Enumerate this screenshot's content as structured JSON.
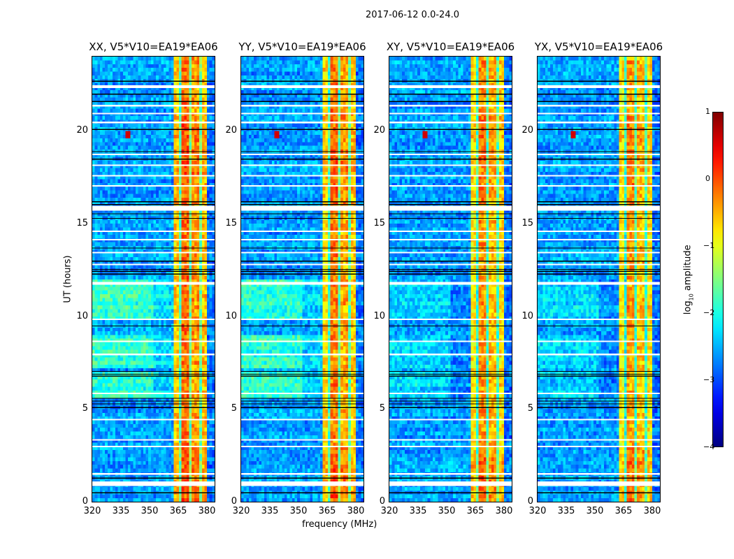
{
  "chart_data": {
    "type": "heatmap",
    "title": "2017-06-12 0.0-24.0",
    "xlabel": "frequency (MHz)",
    "ylabel": "UT (hours)",
    "xlim": [
      320,
      384
    ],
    "ylim": [
      0,
      24
    ],
    "xticks": [
      "320",
      "335",
      "350",
      "365",
      "380"
    ],
    "yticks": [
      "0",
      "5",
      "10",
      "15",
      "20"
    ],
    "colormap": "jet",
    "colorbar": {
      "label_base": "log",
      "label_sub": "10",
      "label_rest": " amplitude",
      "range": [
        -4,
        1
      ],
      "ticks": [
        "1",
        "0",
        "−1",
        "−2",
        "−3",
        "−4"
      ]
    },
    "model": {
      "background_level": -2.6,
      "noise": 0.35,
      "bands": [
        {
          "from": 320,
          "to": 363,
          "level": -2.6
        },
        {
          "from": 363,
          "to": 366,
          "level": -0.8
        },
        {
          "from": 366,
          "to": 367.3,
          "level": -2.0
        },
        {
          "from": 367.3,
          "to": 371,
          "level": -0.35
        },
        {
          "from": 371,
          "to": 372.5,
          "level": -1.8
        },
        {
          "from": 372.5,
          "to": 376,
          "level": -0.55
        },
        {
          "from": 376,
          "to": 377,
          "level": -1.8
        },
        {
          "from": 377,
          "to": 380,
          "level": -0.75
        },
        {
          "from": 380,
          "to": 384,
          "level": -2.8
        }
      ],
      "bright_background_hours": [
        [
          5.7,
          7.0
        ],
        [
          7.3,
          9.0
        ],
        [
          9.8,
          12.0
        ]
      ],
      "flagged_hours": [
        [
          0.85,
          1.1
        ],
        [
          1.45,
          1.55
        ],
        [
          2.95,
          3.02
        ],
        [
          3.3,
          3.37
        ],
        [
          4.4,
          4.47
        ],
        [
          5.8,
          5.87
        ],
        [
          7.9,
          7.98
        ],
        [
          8.6,
          8.68
        ],
        [
          9.8,
          9.87
        ],
        [
          11.7,
          11.85
        ],
        [
          12.75,
          12.82
        ],
        [
          13.4,
          13.47
        ],
        [
          14.1,
          14.17
        ],
        [
          14.55,
          14.62
        ],
        [
          15.7,
          15.95
        ],
        [
          17.0,
          17.07
        ],
        [
          17.55,
          17.62
        ],
        [
          18.1,
          18.17
        ],
        [
          18.7,
          18.77
        ],
        [
          20.4,
          20.5
        ],
        [
          20.9,
          20.97
        ],
        [
          21.3,
          21.4
        ],
        [
          22.3,
          22.45
        ]
      ],
      "black_line_hours": [
        0.5,
        1.3,
        5.1,
        5.3,
        5.45,
        5.6,
        6.8,
        6.9,
        7.05,
        9.5,
        12.3,
        12.45,
        12.55,
        13.0,
        13.7,
        15.3,
        15.55,
        16.05,
        16.2,
        18.5,
        18.9,
        20.1,
        21.6,
        22.0,
        22.7
      ],
      "spots": [
        {
          "freq": 339,
          "hour": 19.8,
          "level": 0.6
        }
      ]
    },
    "panels": [
      {
        "title": "XX, V5*V10=EA19*EA06",
        "band_offset": 0.15,
        "bright_background_level": -1.9
      },
      {
        "title": "YY, V5*V10=EA19*EA06",
        "band_offset": 0.1,
        "bright_background_level": -1.9
      },
      {
        "title": "XY, V5*V10=EA19*EA06",
        "band_offset": 0.0,
        "bright_background_level": -2.3
      },
      {
        "title": "YX, V5*V10=EA19*EA06",
        "band_offset": -0.05,
        "bright_background_level": -2.3
      }
    ]
  }
}
